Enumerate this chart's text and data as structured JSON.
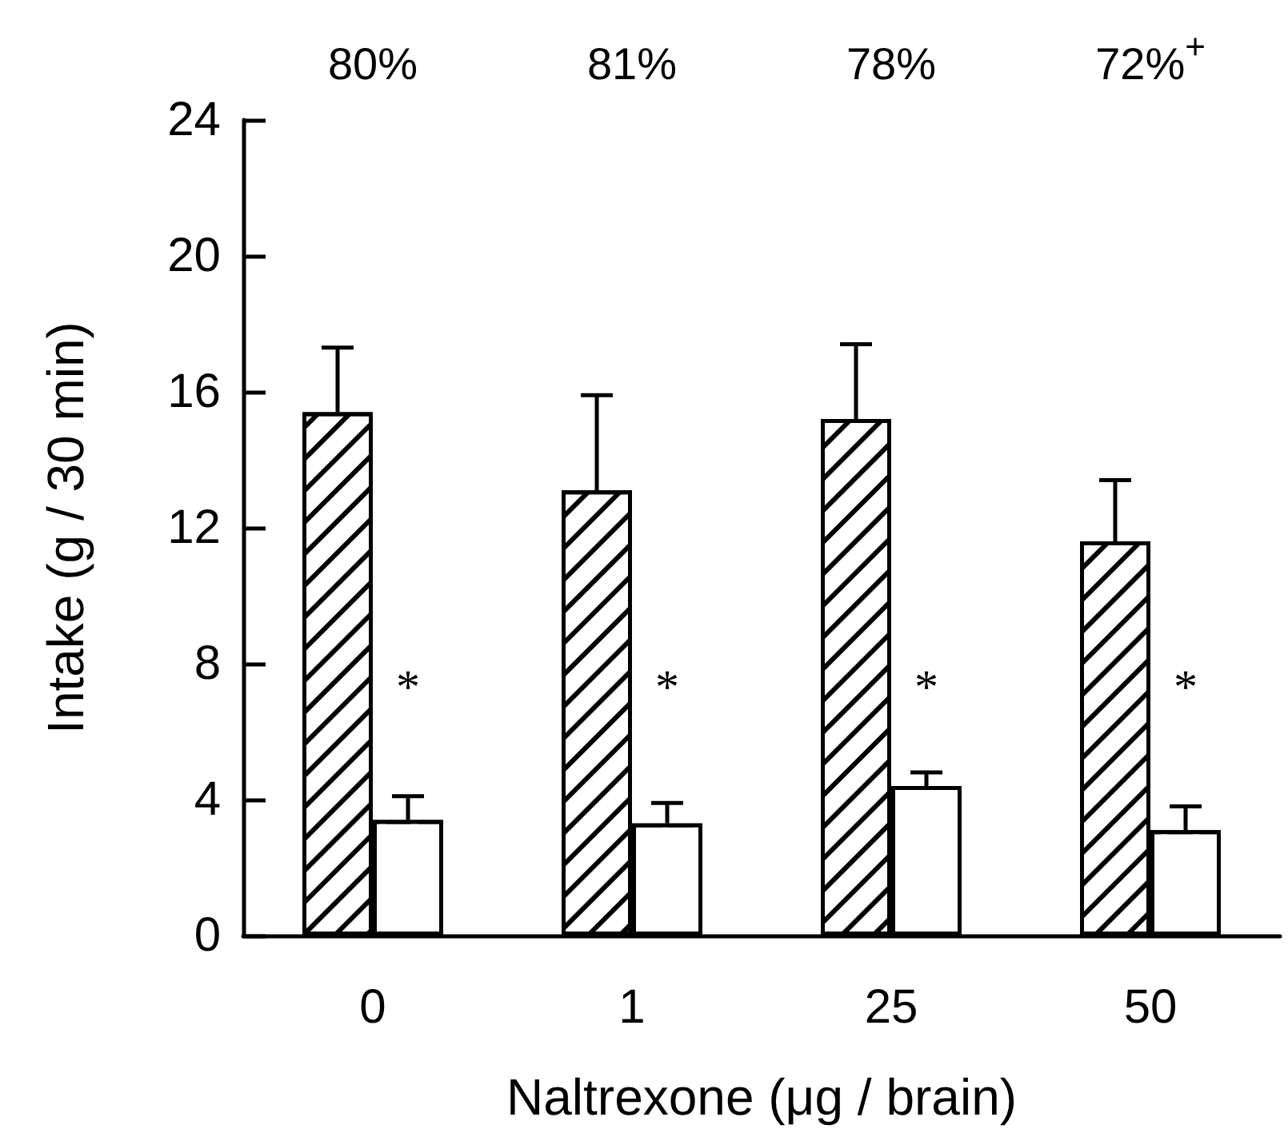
{
  "chart_data": {
    "type": "bar",
    "xlabel": "Naltrexone (μg / brain)",
    "ylabel": "Intake (g / 30 min)",
    "categories": [
      "0",
      "1",
      "25",
      "50"
    ],
    "series": [
      {
        "color": "#000000",
        "values": [
          15.4,
          13.1,
          15.2,
          11.6
        ],
        "errors": [
          [
            15.4,
            17.3
          ],
          [
            13.1,
            15.9
          ],
          [
            15.2,
            17.4
          ],
          [
            11.6,
            13.4
          ]
        ]
      },
      {
        "color": "#ffffff",
        "values": [
          3.4,
          3.3,
          4.4,
          3.1
        ],
        "errors": [
          [
            3.4,
            4.1
          ],
          [
            3.3,
            3.9
          ],
          [
            4.4,
            4.8
          ],
          [
            3.1,
            3.8
          ]
        ]
      }
    ],
    "ylim": [
      0,
      24
    ],
    "yticks": [
      0,
      4,
      8,
      12,
      16,
      20,
      24
    ],
    "grid": false,
    "annotations": [
      "80%",
      "81%",
      "78%",
      "72%$^{+}$",
      {
        "text": "*",
        "x": "0",
        "y": 7.3
      },
      {
        "text": "*",
        "x": "1",
        "y": 7.3
      },
      {
        "text": "*",
        "x": "25",
        "y": 7.3
      },
      {
        "text": "*",
        "x": "50",
        "y": 7.3
      }
    ]
  }
}
